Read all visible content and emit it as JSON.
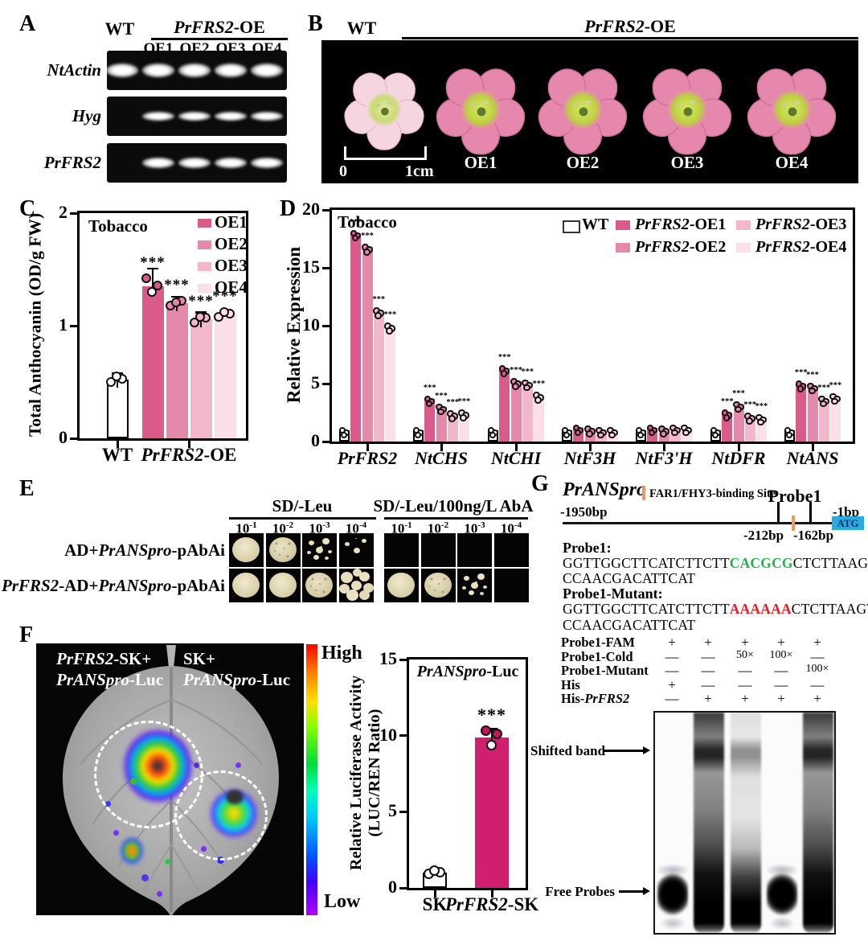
{
  "figure": {
    "panel_labels": {
      "A": "A",
      "B": "B",
      "C": "C",
      "D": "D",
      "E": "E",
      "F": "F",
      "G": "G"
    },
    "colors": {
      "oe1": "#d85c8a",
      "oe2": "#e489aa",
      "oe3": "#f2b7cb",
      "oe4": "#fbdfe9",
      "wt_bar": "#ffffff",
      "magenta": "#d11f6f",
      "seq_green": "#22b14c",
      "seq_red": "#ed1c24",
      "site_orange": "#f4975a",
      "atg_blue": "#29abe2"
    }
  },
  "panelA": {
    "col_wt": "WT",
    "header_oe": [
      {
        "t": "PrFRS2",
        "i": true
      },
      {
        "t": "-OE",
        "i": false
      }
    ],
    "lanes": [
      "OE1",
      "OE2",
      "OE3",
      "OE4"
    ],
    "rows": [
      {
        "gene": "NtActin",
        "bands": [
          1,
          1,
          1,
          1,
          1
        ]
      },
      {
        "gene": "Hyg",
        "bands": [
          0,
          1,
          1,
          1,
          1
        ]
      },
      {
        "gene": "PrFRS2",
        "bands": [
          0,
          1,
          1,
          1,
          1
        ]
      }
    ]
  },
  "panelB": {
    "col_wt": "WT",
    "header_oe": [
      {
        "t": "PrFRS2",
        "i": true
      },
      {
        "t": "-OE",
        "i": false
      }
    ],
    "flowers": [
      {
        "label": "",
        "type": "wt"
      },
      {
        "label": "OE1",
        "type": "oe"
      },
      {
        "label": "OE2",
        "type": "oe"
      },
      {
        "label": "OE3",
        "type": "oe"
      },
      {
        "label": "OE4",
        "type": "oe"
      }
    ],
    "scale": {
      "zero": "0",
      "one": "1cm"
    }
  },
  "panelE": {
    "media": [
      {
        "name": "SD/-Leu"
      },
      {
        "name": "SD/-Leu/100ng/L AbA"
      }
    ],
    "dilutions": [
      {
        "b": "10",
        "e": "-1"
      },
      {
        "b": "10",
        "e": "-2"
      },
      {
        "b": "10",
        "e": "-3"
      },
      {
        "b": "10",
        "e": "-4"
      },
      {
        "b": "10",
        "e": "-1"
      },
      {
        "b": "10",
        "e": "-2"
      },
      {
        "b": "10",
        "e": "-3"
      },
      {
        "b": "10",
        "e": "-4"
      }
    ],
    "rows": [
      {
        "label": [
          {
            "t": "AD+",
            "i": false
          },
          {
            "t": "PrANSpro",
            "i": true
          },
          {
            "t": "-pAbAi",
            "i": false
          }
        ],
        "cells": [
          "full",
          "speckled",
          "scattered",
          "sparse",
          "empty",
          "empty",
          "empty",
          "empty"
        ]
      },
      {
        "label": [
          {
            "t": "PrFRS2",
            "i": true
          },
          {
            "t": "-AD+",
            "i": false
          },
          {
            "t": "PrANSpro",
            "i": true
          },
          {
            "t": "-pAbAi",
            "i": false
          }
        ],
        "cells": [
          "full",
          "full",
          "speckled",
          "clumps",
          "full",
          "speckled",
          "scattered",
          "empty"
        ]
      }
    ]
  },
  "panelF": {
    "spot_labels": [
      {
        "lines": [
          [
            {
              "t": "PrFRS2",
              "i": true
            },
            {
              "t": "-SK+",
              "i": false
            }
          ],
          [
            {
              "t": "PrANSpro",
              "i": true
            },
            {
              "t": "-Luc",
              "i": false
            }
          ]
        ]
      },
      {
        "lines": [
          [
            {
              "t": "SK+",
              "i": false
            }
          ],
          [
            {
              "t": "PrANSpro",
              "i": true
            },
            {
              "t": "-Luc",
              "i": false
            }
          ]
        ]
      }
    ],
    "scale_high": "High",
    "scale_low": "Low"
  },
  "panelG": {
    "title": [
      {
        "t": "PrANSpro",
        "i": true
      }
    ],
    "site_legend": "FAR1/FHY3-binding Site",
    "diagram": {
      "left_label": "-1950bp",
      "right_label": "-1bp",
      "atg": "ATG",
      "probe_label": "Probe1",
      "pos_left": "-212bp",
      "pos_right": "-162bp"
    },
    "sequences": [
      {
        "name": "Probe1:",
        "lines": [
          [
            {
              "t": "GGTTGGCTTCATCTTCTT",
              "c": ""
            },
            {
              "t": "CACGCG",
              "c": "green"
            },
            {
              "t": "CTCTTAAGTG",
              "c": ""
            }
          ],
          [
            {
              "t": "CCAACGACATTCAT",
              "c": ""
            }
          ]
        ]
      },
      {
        "name": "Probe1-Mutant:",
        "lines": [
          [
            {
              "t": "GGTTGGCTTCATCTTCTT",
              "c": ""
            },
            {
              "t": "AAAAAA",
              "c": "red"
            },
            {
              "t": "CTCTTAAGTG",
              "c": ""
            }
          ],
          [
            {
              "t": "CCAACGACATTCAT",
              "c": ""
            }
          ]
        ]
      }
    ],
    "emsa_rows": [
      {
        "label": [
          {
            "t": "Probe1-FAM",
            "i": false
          }
        ],
        "cells": [
          "+",
          "+",
          "+",
          "+",
          "+"
        ]
      },
      {
        "label": [
          {
            "t": "Probe1-Cold",
            "i": false
          }
        ],
        "cells": [
          "—",
          "—",
          "50×",
          "100×",
          "—"
        ]
      },
      {
        "label": [
          {
            "t": "Probe1-Mutant",
            "i": false
          }
        ],
        "cells": [
          "—",
          "—",
          "—",
          "—",
          "100×"
        ]
      },
      {
        "label": [
          {
            "t": "His",
            "i": false
          }
        ],
        "cells": [
          "+",
          "—",
          "—",
          "—",
          "—"
        ]
      },
      {
        "label": [
          {
            "t": "His-",
            "i": false
          },
          {
            "t": "PrFRS2",
            "i": true
          }
        ],
        "cells": [
          "—",
          "+",
          "+",
          "+",
          "+"
        ]
      }
    ],
    "gel": {
      "lanes": [
        "free",
        "heavy",
        "medium",
        "free",
        "heavy"
      ],
      "shifted_label": "Shifted band",
      "free_label": "Free Probes"
    }
  },
  "chart_data": [
    {
      "id": "C",
      "type": "bar",
      "title": "Tobacco",
      "ylabel": "Total Anthocyanin (OD/g FW)",
      "ylim": [
        0,
        2
      ],
      "yticks": [
        0,
        1,
        2
      ],
      "categories": [
        "WT",
        "OE1",
        "OE2",
        "OE3",
        "OE4"
      ],
      "values": [
        0.52,
        1.35,
        1.2,
        1.06,
        1.1
      ],
      "errors": [
        0.03,
        0.08,
        0.03,
        0.03,
        0.02
      ],
      "sig": [
        "",
        "***",
        "***",
        "***",
        "***"
      ],
      "colors": [
        "#ffffff",
        "#d85c8a",
        "#e489aa",
        "#f2b7cb",
        "#fbdfe9"
      ],
      "points": [
        [
          0.5,
          0.53,
          0.55
        ],
        [
          1.42,
          1.36,
          1.3
        ],
        [
          1.18,
          1.22,
          1.21
        ],
        [
          1.03,
          1.07,
          1.08
        ],
        [
          1.08,
          1.11,
          1.12
        ]
      ],
      "point_fills": [
        [
          "#ffffff",
          "#ffffff",
          "#ffffff"
        ],
        [
          "#d85c8a",
          "#d85c8a",
          "#ffffff"
        ],
        [
          "#e489aa",
          "#e489aa",
          "#e489aa"
        ],
        [
          "#f2b7cb",
          "#f2b7cb",
          "#f2b7cb"
        ],
        [
          "#fbdfe9",
          "#fbdfe9",
          "#fbdfe9"
        ]
      ],
      "x_labels": [
        {
          "text": [
            {
              "t": "WT",
              "i": false
            }
          ]
        },
        {
          "text": [
            {
              "t": "PrFRS2",
              "i": true
            },
            {
              "t": "-OE",
              "i": false
            }
          ]
        }
      ],
      "legend": [
        {
          "label": "OE1",
          "color": "#d85c8a"
        },
        {
          "label": "OE2",
          "color": "#e489aa"
        },
        {
          "label": "OE3",
          "color": "#f2b7cb"
        },
        {
          "label": "OE4",
          "color": "#fbdfe9"
        }
      ]
    },
    {
      "id": "D",
      "type": "grouped-bar",
      "title": "Tobacco",
      "ylabel": "Relative Expression",
      "ylim": [
        0,
        20
      ],
      "yticks": [
        0,
        5,
        10,
        15,
        20
      ],
      "categories": [
        "PrFRS2",
        "NtCHS",
        "NtCHI",
        "NtF3H",
        "NtF3'H",
        "NtDFR",
        "NtANS"
      ],
      "series": [
        {
          "name": [
            {
              "t": "WT",
              "i": false
            }
          ],
          "color": "#ffffff",
          "values": [
            1,
            1,
            1,
            1,
            1,
            1,
            1
          ],
          "sig": [
            "",
            "",
            "",
            "",
            "",
            "",
            ""
          ]
        },
        {
          "name": [
            {
              "t": "PrFRS2",
              "i": true
            },
            {
              "t": "-OE1",
              "i": false
            }
          ],
          "color": "#d85c8a",
          "values": [
            18,
            3.7,
            6.3,
            1.2,
            1.2,
            2.5,
            5.0
          ],
          "sig": [
            "***",
            "***",
            "***",
            "",
            "",
            "***",
            "***"
          ]
        },
        {
          "name": [
            {
              "t": "PrFRS2",
              "i": true
            },
            {
              "t": "-OE2",
              "i": false
            }
          ],
          "color": "#e489aa",
          "values": [
            16.8,
            3.0,
            5.2,
            1.1,
            1.1,
            3.2,
            4.8
          ],
          "sig": [
            "***",
            "***",
            "***",
            "",
            "",
            "***",
            "***"
          ]
        },
        {
          "name": [
            {
              "t": "PrFRS2",
              "i": true
            },
            {
              "t": "-OE3",
              "i": false
            }
          ],
          "color": "#f2b7cb",
          "values": [
            11.3,
            2.4,
            5.1,
            1.0,
            1.2,
            2.2,
            3.7
          ],
          "sig": [
            "***",
            "***",
            "***",
            "",
            "",
            "***",
            "***"
          ]
        },
        {
          "name": [
            {
              "t": "PrFRS2",
              "i": true
            },
            {
              "t": "-OE4",
              "i": false
            }
          ],
          "color": "#fbdfe9",
          "values": [
            10,
            2.5,
            4.0,
            1.0,
            1.2,
            2.1,
            3.9
          ],
          "sig": [
            "***",
            "***",
            "***",
            "",
            "",
            "***",
            "***"
          ]
        }
      ],
      "legend_position": "top-right-inside",
      "grid": false
    },
    {
      "id": "F",
      "type": "bar",
      "title": [
        {
          "t": "PrANSpro",
          "i": true
        },
        {
          "t": "-Luc",
          "i": false
        }
      ],
      "ylabel": "Relative Luciferase Activity",
      "ylabel2": "(LUC/REN Ratio)",
      "ylim": [
        0,
        15
      ],
      "yticks": [
        0,
        5,
        10,
        15
      ],
      "categories": [
        "SK",
        "PrFRS2-SK"
      ],
      "values": [
        1.0,
        9.9
      ],
      "errors": [
        0.15,
        0.55
      ],
      "sig": [
        "",
        "***"
      ],
      "colors": [
        "#ffffff",
        "#d11f6f"
      ],
      "points": [
        [
          0.92,
          1.05,
          1.12
        ],
        [
          10.35,
          10.1,
          9.4
        ]
      ],
      "point_fills": [
        [
          "#ffffff",
          "#ffffff",
          "#ffffff"
        ],
        [
          "#c2185b",
          "#c2185b",
          "#ffffff"
        ]
      ],
      "x_labels": [
        {
          "text": [
            {
              "t": "SK",
              "i": false
            }
          ]
        },
        {
          "text": [
            {
              "t": "PrFRS2",
              "i": true
            },
            {
              "t": "-SK",
              "i": false
            }
          ]
        }
      ]
    }
  ]
}
